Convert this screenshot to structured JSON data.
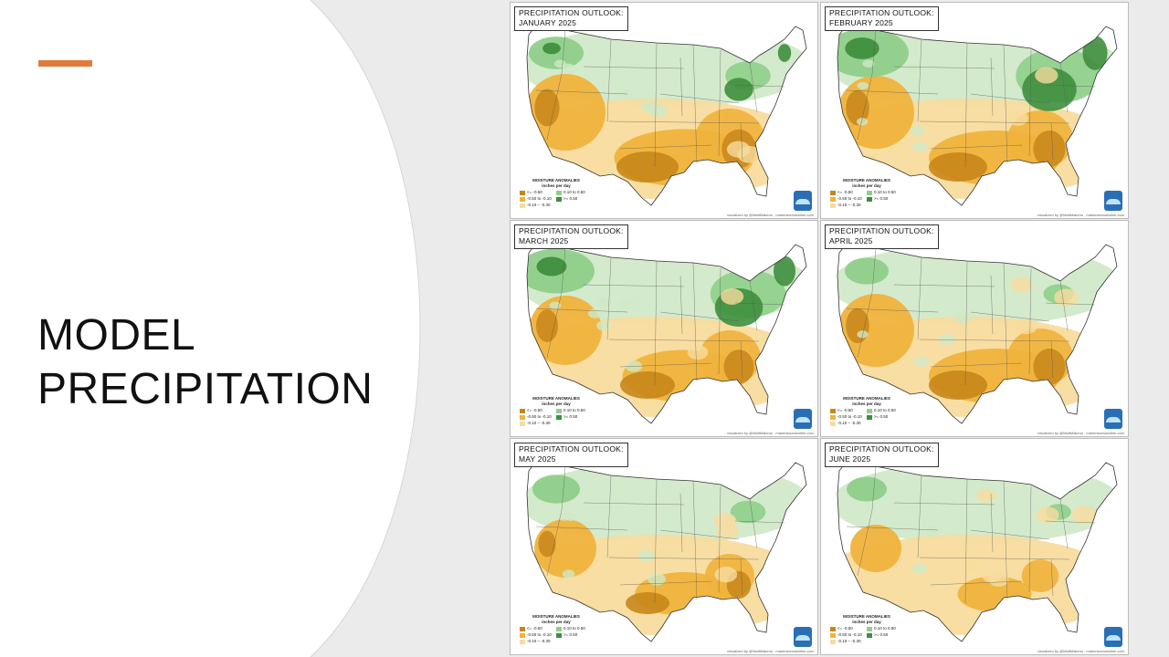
{
  "slide": {
    "title_line1": "MODEL",
    "title_line2": "PRECIPITATION",
    "accent_color": "#e07b39"
  },
  "maps": [
    {
      "title_line1": "PRECIPITATION OUTLOOK:",
      "title_line2": "JANUARY 2025",
      "dry_level": 0.85,
      "wet_level": 0.45
    },
    {
      "title_line1": "PRECIPITATION OUTLOOK:",
      "title_line2": "FEBRUARY 2025",
      "dry_level": 0.8,
      "wet_level": 0.85
    },
    {
      "title_line1": "PRECIPITATION OUTLOOK:",
      "title_line2": "MARCH 2025",
      "dry_level": 0.75,
      "wet_level": 0.75
    },
    {
      "title_line1": "PRECIPITATION OUTLOOK:",
      "title_line2": "APRIL 2025",
      "dry_level": 0.8,
      "wet_level": 0.3
    },
    {
      "title_line1": "PRECIPITATION OUTLOOK:",
      "title_line2": "MAY 2025",
      "dry_level": 0.6,
      "wet_level": 0.35
    },
    {
      "title_line1": "PRECIPITATION OUTLOOK:",
      "title_line2": "JUNE 2025",
      "dry_level": 0.45,
      "wet_level": 0.25
    }
  ],
  "legend": {
    "heading": "MOISTURE ANOMALIES",
    "subheading": "inches per day",
    "items": [
      {
        "label": "<= -0.50",
        "color": "#c8861a"
      },
      {
        "label": "0.10 to 0.50",
        "color": "#8fcf8a"
      },
      {
        "label": "-0.50 to -0.10",
        "color": "#f0b33c"
      },
      {
        "label": ">= 0.50",
        "color": "#3e8f3e"
      },
      {
        "label": "-0.10 – -0.30",
        "color": "#f8dc9e"
      }
    ]
  },
  "credit": "visualized by @MattMakens · makenswxweather.com",
  "colors": {
    "very_dry": "#c8861a",
    "dry": "#f0b33c",
    "slight_dry": "#f8dc9e",
    "slight_wet": "#cfe8c6",
    "wet": "#8fcf8a",
    "very_wet": "#3e8f3e",
    "logo": "#2a6fb3"
  }
}
